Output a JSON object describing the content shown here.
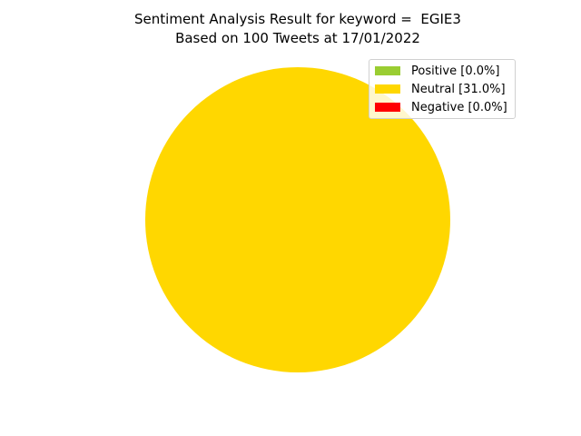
{
  "chart_data": {
    "type": "pie",
    "title_lines": [
      "Sentiment Analysis Result for keyword =  EGIE3",
      "Based on 100 Tweets at 17/01/2022"
    ],
    "slices": [
      {
        "label": "Positive [0.0%]",
        "value": 0.0,
        "color": "#9acd32"
      },
      {
        "label": "Neutral [31.0%]",
        "value": 31.0,
        "color": "#ffd700"
      },
      {
        "label": "Negative [0.0%]",
        "value": 0.0,
        "color": "#ff0000"
      }
    ],
    "legend_position": "top-right"
  }
}
